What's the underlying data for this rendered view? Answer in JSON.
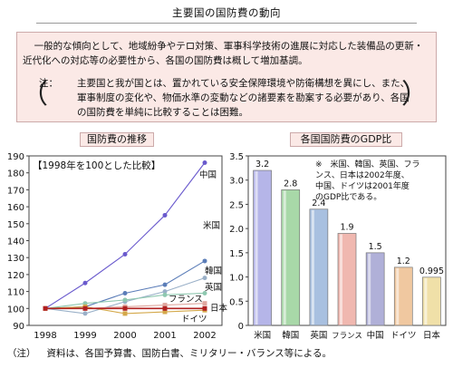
{
  "page_title": "主要国の国防費の動向",
  "summary": {
    "text": "一般的な傾向として、地域紛争やテロ対策、軍事科学技術の進展に対応した装備品の更新・近代化への対応等の必要性から、各国の国防費は概して増加基調。",
    "note_label": "注：",
    "note_text": "主要国と我が国とは、置かれている安全保障環境や防衛構想を異にし、また、軍事制度の変化や、物価水準の変動などの諸要素を勘案する必要があり、各国の国防費を単純に比較することは困難。",
    "paren_open": "（",
    "paren_close": "）"
  },
  "footnote": {
    "label": "（注）",
    "text": "資料は、各国予算書、国防白書、ミリタリー・バランス等による。"
  },
  "chart_data": [
    {
      "type": "line",
      "title": "国防費の推移",
      "annotation": "【1998年を100とした比較】",
      "x": [
        "1998",
        "1999",
        "2000",
        "2001",
        "2002"
      ],
      "ylim": [
        90,
        190
      ],
      "yticks": [
        90,
        100,
        110,
        120,
        130,
        140,
        150,
        160,
        170,
        180,
        190
      ],
      "grid": false,
      "series": [
        {
          "name": "中国",
          "values": [
            100,
            115,
            132,
            155,
            186
          ],
          "color": "#6a5acd"
        },
        {
          "name": "米国",
          "values": [
            100,
            101,
            109,
            114,
            128
          ],
          "color": "#5b7db8"
        },
        {
          "name": "韓国",
          "values": [
            100,
            97,
            104,
            110,
            118
          ],
          "color": "#9ab0c8"
        },
        {
          "name": "英国",
          "values": [
            100,
            103,
            105,
            108,
            109
          ],
          "color": "#8fc8b0"
        },
        {
          "name": "フランス",
          "values": [
            100,
            100,
            101,
            102,
            103
          ],
          "color": "#e0a8a0"
        },
        {
          "name": "ドイツ",
          "values": [
            100,
            101,
            97,
            98,
            99
          ],
          "color": "#d4a84a"
        },
        {
          "name": "日本",
          "values": [
            100,
            100,
            100,
            100,
            100
          ],
          "color": "#b02020"
        }
      ]
    },
    {
      "type": "bar",
      "title": "各国国防費のGDP比",
      "categories": [
        "米国",
        "韓国",
        "英国",
        "フランス",
        "中国",
        "ドイツ",
        "日本"
      ],
      "values": [
        3.2,
        2.8,
        2.4,
        1.9,
        1.5,
        1.2,
        0.995
      ],
      "value_labels": [
        "3.2",
        "2.8",
        "2.4",
        "1.9",
        "1.5",
        "1.2",
        "0.995"
      ],
      "colors": [
        "#b5b5e8",
        "#a8d8a8",
        "#a8c0e0",
        "#f0b8b0",
        "#b0b0d8",
        "#f0c8a0",
        "#f0e0a8"
      ],
      "ylim": [
        0,
        3.5
      ],
      "yticks": [
        "0",
        "0.5",
        "1.0",
        "1.5",
        "2.0",
        "2.5",
        "3.0",
        "3.5"
      ],
      "note_lines": [
        "※　米国、韓国、英国、フラ",
        "ンス、日本は2002年度、",
        "中国、ドイツは2001年度",
        "のGDP比である。"
      ]
    }
  ]
}
